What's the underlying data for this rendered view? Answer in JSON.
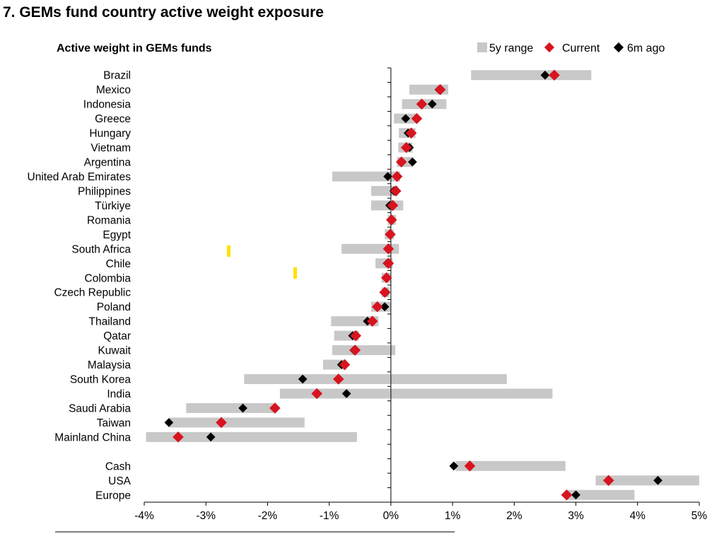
{
  "figure_title": "7. GEMs fund country active weight exposure",
  "chart_data": {
    "type": "range-dot",
    "subtitle": "Active weight in GEMs funds",
    "legend": [
      {
        "key": "range",
        "label": "5y range",
        "color": "#c8c8c8"
      },
      {
        "key": "current",
        "label": "Current",
        "color": "#d7141f"
      },
      {
        "key": "ago",
        "label": "6m ago",
        "color": "#000000"
      }
    ],
    "xlim": [
      -4,
      5
    ],
    "xticks": [
      {
        "value": -4,
        "label": "-4%"
      },
      {
        "value": -3,
        "label": "-3%"
      },
      {
        "value": -2,
        "label": "-2%"
      },
      {
        "value": -1,
        "label": "-1%"
      },
      {
        "value": 0,
        "label": "0%"
      },
      {
        "value": 1,
        "label": "1%"
      },
      {
        "value": 2,
        "label": "2%"
      },
      {
        "value": 3,
        "label": "3%"
      },
      {
        "value": 4,
        "label": "4%"
      },
      {
        "value": 5,
        "label": "5%"
      }
    ],
    "rows": [
      {
        "name": "Brazil",
        "min": 1.3,
        "max": 3.25,
        "current": 2.65,
        "ago": 2.5
      },
      {
        "name": "Mexico",
        "min": 0.3,
        "max": 0.93,
        "current": 0.8,
        "ago": 0.78
      },
      {
        "name": "Indonesia",
        "min": 0.18,
        "max": 0.9,
        "current": 0.5,
        "ago": 0.67
      },
      {
        "name": "Greece",
        "min": 0.05,
        "max": 0.43,
        "current": 0.42,
        "ago": 0.24
      },
      {
        "name": "Hungary",
        "min": 0.13,
        "max": 0.4,
        "current": 0.33,
        "ago": 0.28
      },
      {
        "name": "Vietnam",
        "min": 0.12,
        "max": 0.35,
        "current": 0.25,
        "ago": 0.3
      },
      {
        "name": "Argentina",
        "min": 0.1,
        "max": 0.35,
        "current": 0.17,
        "ago": 0.35
      },
      {
        "name": "United Arab Emirates",
        "min": -0.95,
        "max": 0.15,
        "current": 0.1,
        "ago": -0.05
      },
      {
        "name": "Philippines",
        "min": -0.32,
        "max": 0.12,
        "current": 0.08,
        "ago": 0.05
      },
      {
        "name": "Türkiye",
        "min": -0.32,
        "max": 0.2,
        "current": 0.03,
        "ago": -0.02
      },
      {
        "name": "Romania",
        "min": -0.05,
        "max": 0.08,
        "current": 0.01,
        "ago": 0.01
      },
      {
        "name": "Egypt",
        "min": -0.1,
        "max": 0.05,
        "current": -0.01,
        "ago": 0.0
      },
      {
        "name": "South Africa",
        "min": -0.8,
        "max": 0.13,
        "current": -0.04,
        "ago": -0.03
      },
      {
        "name": "Chile",
        "min": -0.25,
        "max": 0.03,
        "current": -0.04,
        "ago": -0.06
      },
      {
        "name": "Colombia",
        "min": -0.15,
        "max": 0.0,
        "current": -0.07,
        "ago": -0.07
      },
      {
        "name": "Czech Republic",
        "min": -0.15,
        "max": -0.02,
        "current": -0.1,
        "ago": -0.08
      },
      {
        "name": "Poland",
        "min": -0.32,
        "max": 0.0,
        "current": -0.22,
        "ago": -0.1
      },
      {
        "name": "Thailand",
        "min": -0.97,
        "max": -0.2,
        "current": -0.3,
        "ago": -0.38
      },
      {
        "name": "Qatar",
        "min": -0.92,
        "max": -0.52,
        "current": -0.57,
        "ago": -0.62
      },
      {
        "name": "Kuwait",
        "min": -0.95,
        "max": 0.07,
        "current": -0.58,
        "ago": -0.6
      },
      {
        "name": "Malaysia",
        "min": -1.1,
        "max": -0.72,
        "current": -0.75,
        "ago": -0.8
      },
      {
        "name": "South Korea",
        "min": -2.38,
        "max": 1.88,
        "current": -0.85,
        "ago": -1.43
      },
      {
        "name": "India",
        "min": -1.8,
        "max": 2.62,
        "current": -1.2,
        "ago": -0.72
      },
      {
        "name": "Saudi Arabia",
        "min": -3.32,
        "max": -1.85,
        "current": -1.88,
        "ago": -2.4
      },
      {
        "name": "Taiwan",
        "min": -3.6,
        "max": -1.4,
        "current": -2.75,
        "ago": -3.6
      },
      {
        "name": "Mainland China",
        "min": -3.97,
        "max": -0.55,
        "current": -3.45,
        "ago": -2.92
      },
      null,
      {
        "name": "Cash",
        "min": 1.05,
        "max": 2.83,
        "current": 1.28,
        "ago": 1.02
      },
      {
        "name": "USA",
        "min": 3.32,
        "max": 5.0,
        "current": 3.53,
        "ago": 4.33
      },
      {
        "name": "Europe",
        "min": 2.85,
        "max": 3.95,
        "current": 2.85,
        "ago": 3.0
      }
    ]
  }
}
